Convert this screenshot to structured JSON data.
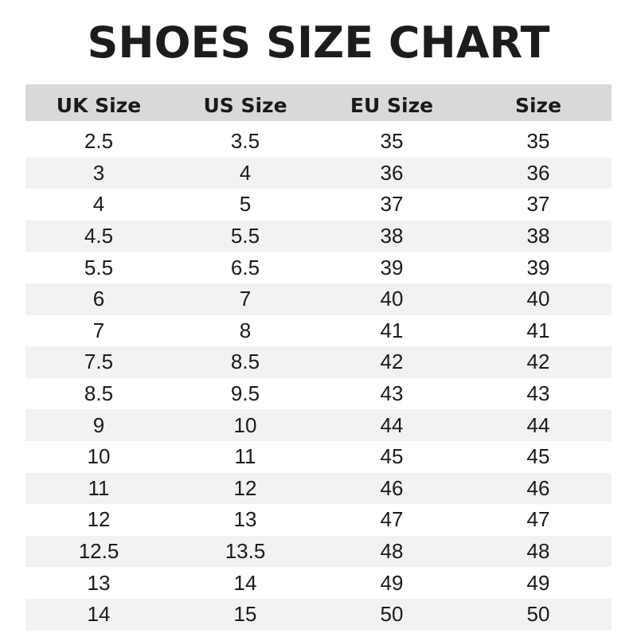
{
  "title": "SHOES SIZE CHART",
  "headers": [
    "UK Size",
    "US Size",
    "EU Size",
    "Size"
  ],
  "rows": [
    [
      "2.5",
      "3.5",
      "35",
      "35"
    ],
    [
      "3",
      "4",
      "36",
      "36"
    ],
    [
      "4",
      "5",
      "37",
      "37"
    ],
    [
      "4.5",
      "5.5",
      "38",
      "38"
    ],
    [
      "5.5",
      "6.5",
      "39",
      "39"
    ],
    [
      "6",
      "7",
      "40",
      "40"
    ],
    [
      "7",
      "8",
      "41",
      "41"
    ],
    [
      "7.5",
      "8.5",
      "42",
      "42"
    ],
    [
      "8.5",
      "9.5",
      "43",
      "43"
    ],
    [
      "9",
      "10",
      "44",
      "44"
    ],
    [
      "10",
      "11",
      "45",
      "45"
    ],
    [
      "11",
      "12",
      "46",
      "46"
    ],
    [
      "12",
      "13",
      "47",
      "47"
    ],
    [
      "12.5",
      "13.5",
      "48",
      "48"
    ],
    [
      "13",
      "14",
      "49",
      "49"
    ],
    [
      "14",
      "15",
      "50",
      "50"
    ]
  ],
  "colors": {
    "header_bg": "#d9d9d9",
    "stripe_bg": "#f2f2f2",
    "text": "#1a1a1a"
  }
}
